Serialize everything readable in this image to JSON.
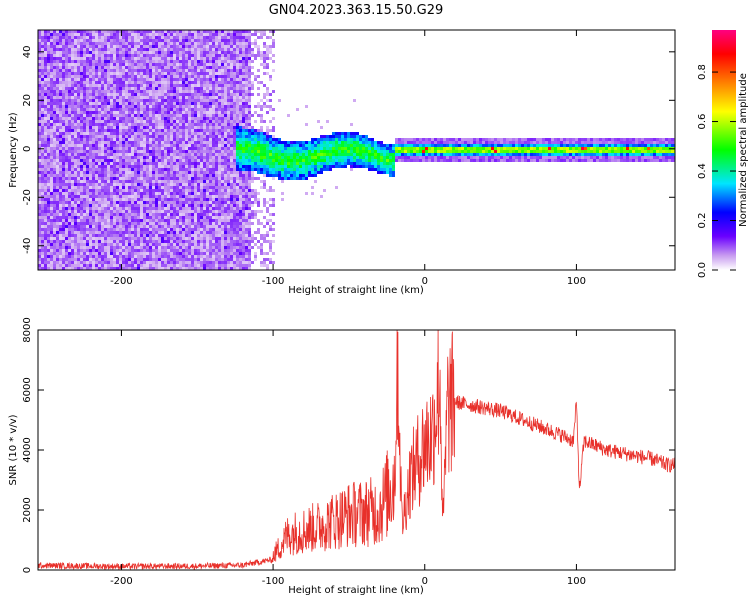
{
  "title": "GN04.2023.363.15.50.G29",
  "chart_data": [
    {
      "type": "heatmap",
      "xlabel": "Height of straight line (km)",
      "ylabel": "Frequency (Hz)",
      "xlim": [
        -255,
        165
      ],
      "ylim": [
        -50,
        49
      ],
      "xticks": [
        -200,
        -100,
        0,
        100
      ],
      "yticks": [
        -40,
        -20,
        0,
        20,
        40
      ],
      "colorbar": {
        "label": "Normalized spectral amplitude",
        "range": [
          0,
          0.97
        ],
        "ticks": [
          0.0,
          0.2,
          0.4,
          0.6,
          0.8
        ],
        "colormap": [
          "#ffffff",
          "#c89cf0",
          "#6a00ff",
          "#0000ff",
          "#00e5ff",
          "#00ff00",
          "#ffff00",
          "#ff8000",
          "#ff0000",
          "#ff0080"
        ]
      },
      "regions": [
        {
          "x": [
            -255,
            -110
          ],
          "freq": [
            -50,
            49
          ],
          "amplitude": 0.08,
          "pattern": "broadband noise"
        },
        {
          "x": [
            -125,
            -20
          ],
          "freq": [
            -10,
            8
          ],
          "amplitude": 0.35,
          "pattern": "scattered signal"
        },
        {
          "x": [
            -20,
            165
          ],
          "freq": [
            -2,
            2
          ],
          "amplitude": 0.55,
          "pattern": "steady tone near 0 Hz"
        }
      ],
      "grid": false
    },
    {
      "type": "line",
      "xlabel": "Height of straight line (km)",
      "ylabel": "SNR (10 * v/v)",
      "xlim": [
        -255,
        165
      ],
      "ylim": [
        0,
        8000
      ],
      "xticks": [
        -200,
        -100,
        0,
        100
      ],
      "yticks": [
        0,
        2000,
        4000,
        6000,
        8000
      ],
      "color": "#e8302a",
      "x": [
        -255,
        -200,
        -150,
        -120,
        -100,
        -90,
        -70,
        -50,
        -30,
        -20,
        -18,
        -15,
        -10,
        -5,
        0,
        5,
        10,
        12,
        15,
        20,
        30,
        40,
        50,
        60,
        70,
        80,
        90,
        98,
        100,
        102,
        105,
        110,
        120,
        130,
        140,
        150,
        160,
        165
      ],
      "values": [
        150,
        120,
        130,
        160,
        350,
        900,
        1100,
        1400,
        1500,
        2300,
        7400,
        1500,
        3000,
        3600,
        4200,
        4500,
        6500,
        1400,
        5400,
        5600,
        5500,
        5400,
        5300,
        5100,
        4900,
        4700,
        4500,
        4300,
        5600,
        2600,
        4300,
        4200,
        4000,
        3900,
        3800,
        3700,
        3500,
        3500
      ],
      "spiky": true,
      "grid": false
    }
  ]
}
